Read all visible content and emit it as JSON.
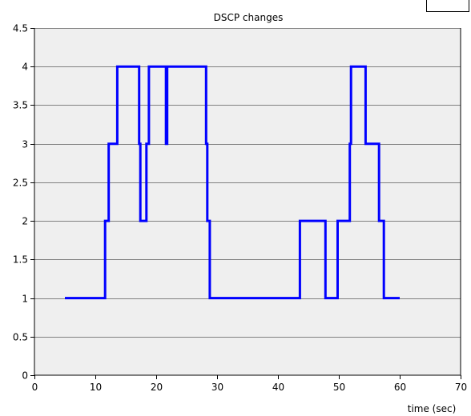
{
  "colors": {
    "background": "#ffffff",
    "plot_background": "#efefef",
    "grid": "#808080",
    "axis": "#000000",
    "series": "#0000ff"
  },
  "chart_data": {
    "type": "line",
    "title": "DSCP changes",
    "xlabel": "time (sec)",
    "ylabel": "",
    "xlim": [
      0,
      70
    ],
    "ylim": [
      0,
      4.5
    ],
    "xticks": [
      0,
      10,
      20,
      30,
      40,
      50,
      60,
      70
    ],
    "yticks": [
      0,
      0.5,
      1,
      1.5,
      2,
      2.5,
      3,
      3.5,
      4,
      4.5
    ],
    "xtick_labels": [
      "0",
      "10",
      "20",
      "30",
      "40",
      "50",
      "60",
      "70"
    ],
    "ytick_labels": [
      "0",
      "0.5",
      "1",
      "1.5",
      "2",
      "2.5",
      "3",
      "3.5",
      "4",
      "4.5"
    ],
    "grid": "horizontal",
    "legend": "none",
    "series": [
      {
        "step": "post",
        "x": [
          5.0,
          11.6,
          12.2,
          13.6,
          17.2,
          17.4,
          18.4,
          18.8,
          21.6,
          21.8,
          28.2,
          28.4,
          28.8,
          43.6,
          47.8,
          49.8,
          51.8,
          52.0,
          52.6,
          54.4,
          56.6,
          57.4,
          60.0
        ],
        "y": [
          1,
          2,
          3,
          4,
          3,
          2,
          3,
          4,
          3,
          4,
          3,
          2,
          1,
          2,
          1,
          2,
          3,
          4,
          4,
          3,
          2,
          1,
          1
        ]
      }
    ]
  }
}
